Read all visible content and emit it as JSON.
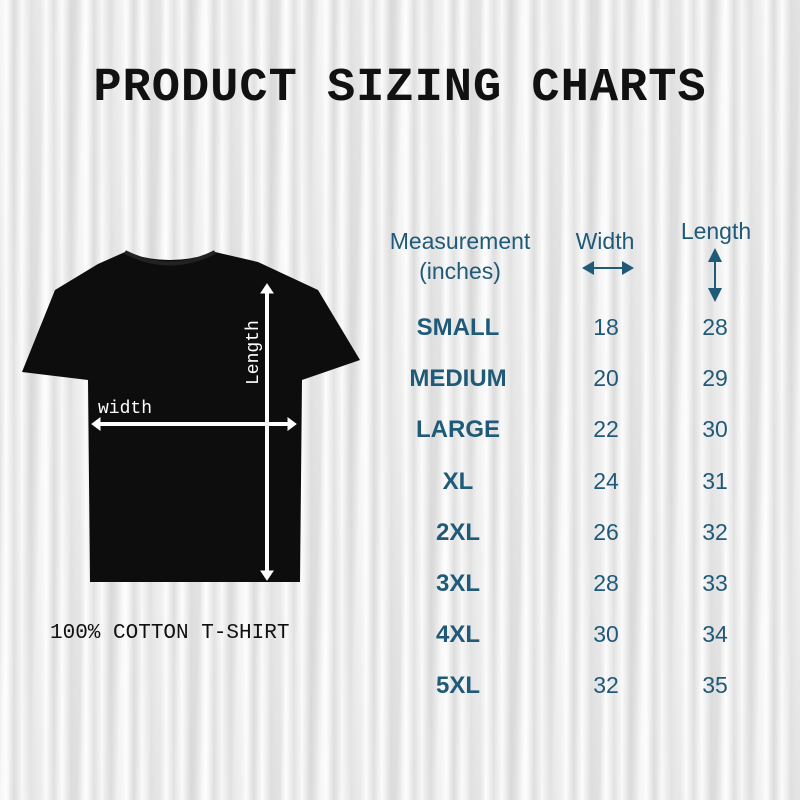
{
  "title": "PRODUCT SIZING CHARTS",
  "shirt": {
    "width_label": "width",
    "length_label": "Length",
    "caption": "100% COTTON T-SHIRT"
  },
  "table": {
    "headers": {
      "measurement": "Measurement",
      "unit": "(inches)",
      "width": "Width",
      "length": "Length"
    },
    "rows": [
      {
        "size": "SMALL",
        "width": "18",
        "length": "28"
      },
      {
        "size": "MEDIUM",
        "width": "20",
        "length": "29"
      },
      {
        "size": "LARGE",
        "width": "22",
        "length": "30"
      },
      {
        "size": "XL",
        "width": "24",
        "length": "31"
      },
      {
        "size": "2XL",
        "width": "26",
        "length": "32"
      },
      {
        "size": "3XL",
        "width": "28",
        "length": "33"
      },
      {
        "size": "4XL",
        "width": "30",
        "length": "34"
      },
      {
        "size": "5XL",
        "width": "32",
        "length": "35"
      }
    ]
  },
  "colors": {
    "accent": "#1f5a78",
    "shirt": "#0d0d0d"
  }
}
